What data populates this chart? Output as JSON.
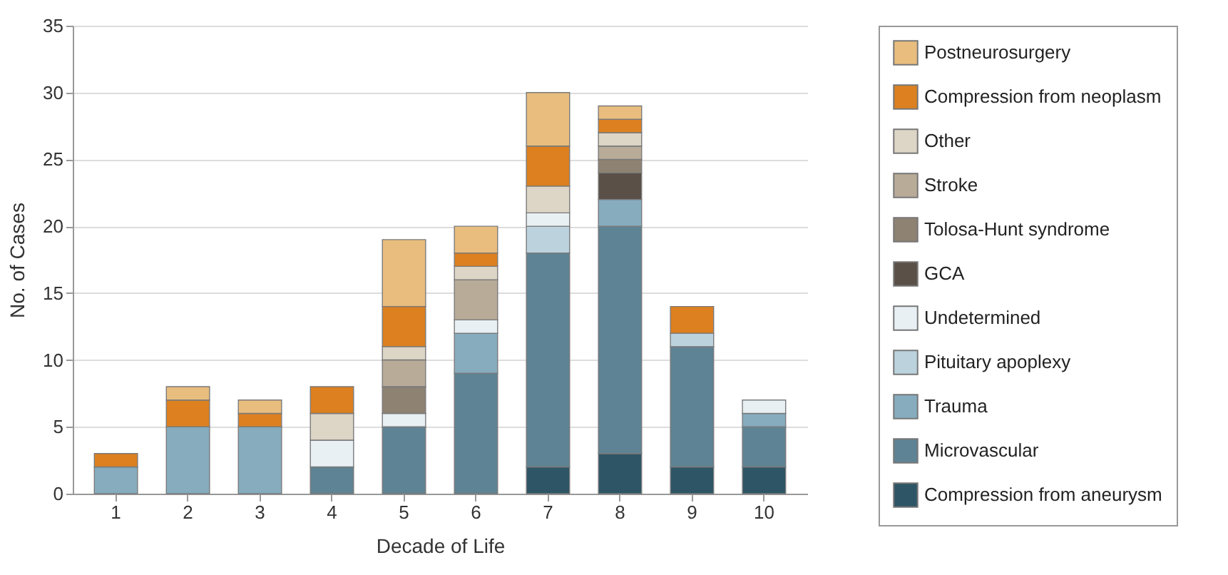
{
  "chart_data": {
    "type": "bar",
    "stacked": true,
    "xlabel": "Decade of Life",
    "ylabel": "No. of Cases",
    "categories": [
      "1",
      "2",
      "3",
      "4",
      "5",
      "6",
      "7",
      "8",
      "9",
      "10"
    ],
    "ylim": [
      0,
      35
    ],
    "yticks": [
      0,
      5,
      10,
      15,
      20,
      25,
      30,
      35
    ],
    "grid": "y",
    "legend": "right",
    "series": [
      {
        "name": "Compression from aneurysm",
        "color": "#2e5566",
        "values": [
          0,
          0,
          0,
          0,
          0,
          0,
          2,
          3,
          2,
          2
        ]
      },
      {
        "name": "Microvascular",
        "color": "#5e8394",
        "values": [
          0,
          0,
          0,
          2,
          5,
          9,
          16,
          17,
          9,
          3
        ]
      },
      {
        "name": "Trauma",
        "color": "#86acbe",
        "values": [
          2,
          5,
          5,
          0,
          0,
          3,
          0,
          2,
          0,
          1
        ]
      },
      {
        "name": "Pituitary apoplexy",
        "color": "#bcd3de",
        "values": [
          0,
          0,
          0,
          0,
          0,
          0,
          2,
          0,
          1,
          0
        ]
      },
      {
        "name": "Undetermined",
        "color": "#e8f0f4",
        "values": [
          0,
          0,
          0,
          2,
          1,
          1,
          1,
          0,
          0,
          1
        ]
      },
      {
        "name": "GCA",
        "color": "#5a5048",
        "values": [
          0,
          0,
          0,
          0,
          0,
          0,
          0,
          2,
          0,
          0
        ]
      },
      {
        "name": "Tolosa-Hunt syndrome",
        "color": "#8e8272",
        "values": [
          0,
          0,
          0,
          0,
          2,
          0,
          0,
          1,
          0,
          0
        ]
      },
      {
        "name": "Stroke",
        "color": "#b8ab98",
        "values": [
          0,
          0,
          0,
          0,
          2,
          3,
          0,
          1,
          0,
          0
        ]
      },
      {
        "name": "Other",
        "color": "#ddd5c5",
        "values": [
          0,
          0,
          0,
          2,
          1,
          1,
          2,
          1,
          0,
          0
        ]
      },
      {
        "name": "Compression from neoplasm",
        "color": "#dc8020",
        "values": [
          1,
          2,
          1,
          2,
          3,
          1,
          3,
          1,
          2,
          0
        ]
      },
      {
        "name": "Postneurosurgery",
        "color": "#e8bd7e",
        "values": [
          0,
          1,
          1,
          0,
          5,
          2,
          4,
          1,
          0,
          0
        ]
      }
    ]
  }
}
